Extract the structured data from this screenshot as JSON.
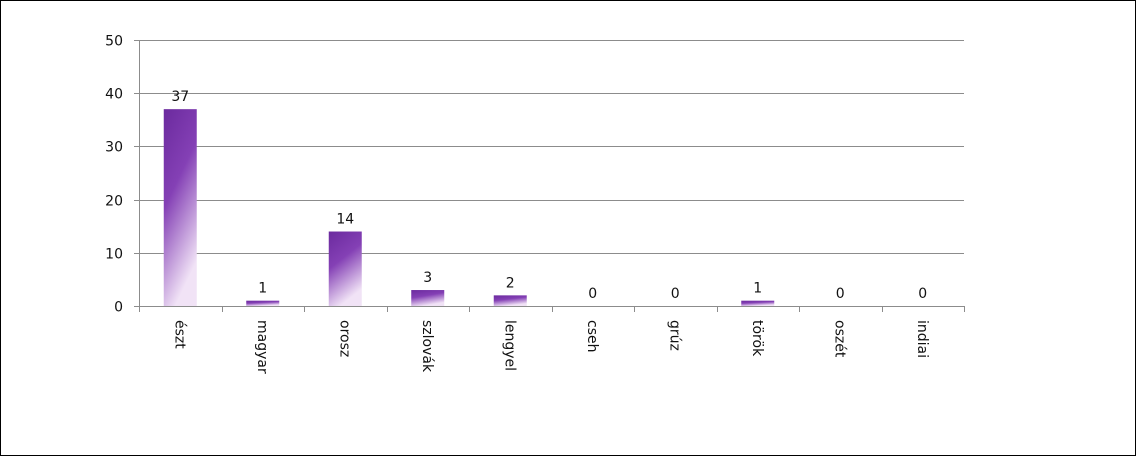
{
  "chart_data": {
    "type": "bar",
    "categories": [
      "észt",
      "magyar",
      "orosz",
      "szlovák",
      "lengyel",
      "cseh",
      "grúz",
      "török",
      "oszét",
      "indiai"
    ],
    "values": [
      37,
      1,
      14,
      3,
      2,
      0,
      0,
      1,
      0,
      0
    ],
    "ylim": [
      0,
      50
    ],
    "yticks": [
      0,
      10,
      20,
      30,
      40,
      50
    ],
    "grid": true,
    "data_labels": true,
    "colors": {
      "bar_top": "#6b2a9e",
      "bar_bottom": "#efe0f5",
      "grid": "#8c8c8c"
    }
  }
}
